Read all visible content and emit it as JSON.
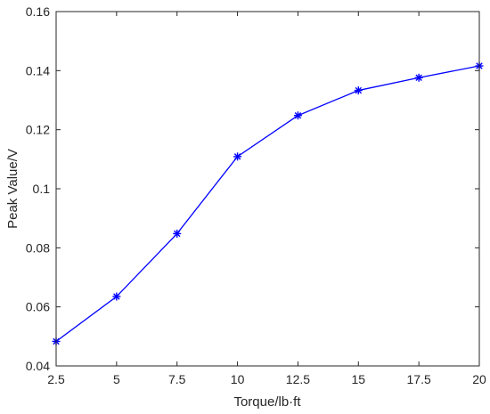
{
  "chart_data": {
    "type": "line",
    "title": "",
    "xlabel": "Torque/lb·ft",
    "ylabel": "Peak Value/V",
    "xlim": [
      2.5,
      20
    ],
    "ylim": [
      0.04,
      0.16
    ],
    "xticks": [
      2.5,
      5,
      7.5,
      10,
      12.5,
      15,
      17.5,
      20
    ],
    "xtick_labels": [
      "2.5",
      "5",
      "7.5",
      "10",
      "12.5",
      "15",
      "17.5",
      "20"
    ],
    "yticks": [
      0.04,
      0.06,
      0.08,
      0.1,
      0.12,
      0.14,
      0.16
    ],
    "ytick_labels": [
      "0.04",
      "0.06",
      "0.08",
      "0.1",
      "0.12",
      "0.14",
      "0.16"
    ],
    "grid": false,
    "legend": false,
    "marker": "asterisk",
    "color": "#0000ff",
    "series": [
      {
        "x": [
          2.5,
          5,
          7.5,
          10,
          12.5,
          15,
          17.5,
          20
        ],
        "values": [
          0.0483,
          0.0635,
          0.0848,
          0.1109,
          0.1248,
          0.1333,
          0.1376,
          0.1416
        ]
      }
    ]
  }
}
